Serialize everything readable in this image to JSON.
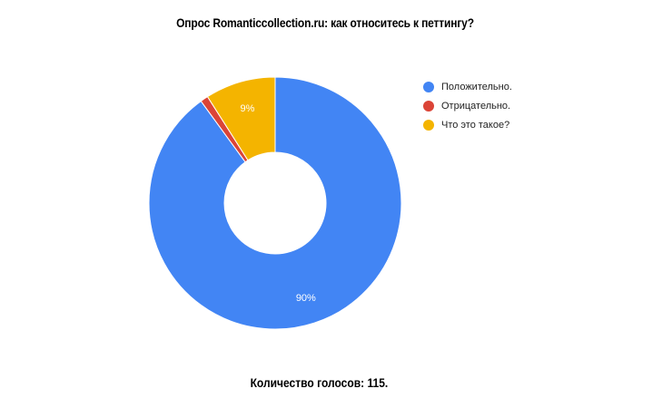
{
  "title": "Опрос Romanticcollection.ru:  как относитесь к петтингу?",
  "footer": "Количество голосов: 115.",
  "colors": {
    "blue": "#4285f4",
    "red": "#db4437",
    "yellow": "#f4b400",
    "label_text": "#ffffff"
  },
  "chart_data": {
    "type": "pie",
    "donut": true,
    "slices": [
      {
        "label": "Положительно.",
        "value": 90,
        "color": "#4285f4",
        "display": "90%"
      },
      {
        "label": "Отрицательно.",
        "value": 1,
        "color": "#db4437",
        "display": ""
      },
      {
        "label": "Что это такое?",
        "value": 9,
        "color": "#f4b400",
        "display": "9%"
      }
    ],
    "legend_position": "right"
  }
}
